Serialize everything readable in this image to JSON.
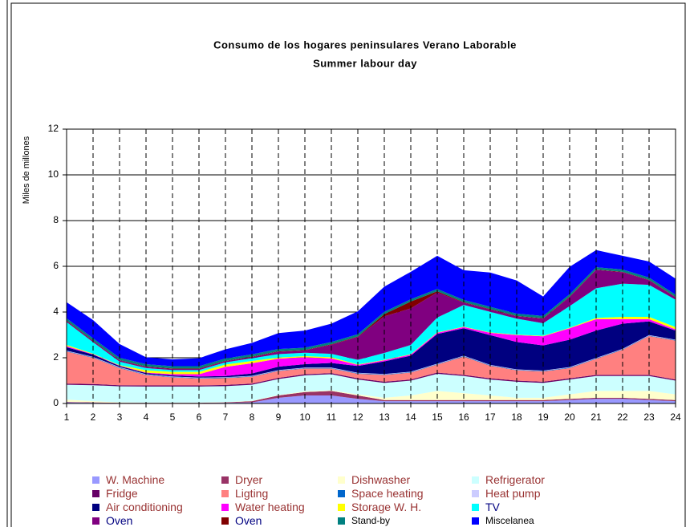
{
  "chart_data": {
    "type": "stacked_area",
    "title": "Consumo de los hogares peninsulares Verano Laborable",
    "subtitle": "Summer labour day",
    "y_label": "Miles de millones",
    "categories": [
      "1",
      "2",
      "3",
      "4",
      "5",
      "6",
      "7",
      "8",
      "9",
      "10",
      "11",
      "12",
      "13",
      "14",
      "15",
      "16",
      "17",
      "18",
      "19",
      "20",
      "21",
      "22",
      "23",
      "24"
    ],
    "ylim": [
      0,
      12
    ],
    "yticks": [
      0,
      2,
      4,
      6,
      8,
      10,
      12
    ],
    "grid": true,
    "series": [
      {
        "name": "W. Machine",
        "color": "#9999ff",
        "values": [
          0.05,
          0.03,
          0.02,
          0.02,
          0.02,
          0.02,
          0.03,
          0.05,
          0.25,
          0.35,
          0.35,
          0.2,
          0.1,
          0.1,
          0.1,
          0.1,
          0.1,
          0.1,
          0.1,
          0.15,
          0.2,
          0.2,
          0.15,
          0.1
        ]
      },
      {
        "name": "Dryer",
        "color": "#993366",
        "values": [
          0.02,
          0.02,
          0.01,
          0.01,
          0.01,
          0.01,
          0.02,
          0.05,
          0.1,
          0.15,
          0.2,
          0.15,
          0.05,
          0.05,
          0.05,
          0.05,
          0.05,
          0.05,
          0.05,
          0.05,
          0.05,
          0.05,
          0.05,
          0.05
        ]
      },
      {
        "name": "Dishwasher",
        "color": "#ffffcc",
        "values": [
          0.1,
          0.05,
          0.02,
          0.01,
          0.01,
          0.01,
          0.01,
          0.02,
          0.02,
          0.03,
          0.03,
          0.05,
          0.1,
          0.2,
          0.4,
          0.3,
          0.2,
          0.1,
          0.1,
          0.2,
          0.3,
          0.3,
          0.35,
          0.25
        ]
      },
      {
        "name": "Refrigerator",
        "color": "#ccffff",
        "values": [
          0.65,
          0.7,
          0.7,
          0.7,
          0.7,
          0.7,
          0.7,
          0.7,
          0.7,
          0.7,
          0.7,
          0.65,
          0.65,
          0.65,
          0.75,
          0.75,
          0.7,
          0.7,
          0.65,
          0.65,
          0.65,
          0.65,
          0.65,
          0.6
        ]
      },
      {
        "name": "Fridge",
        "color": "#660066",
        "values": [
          0.05,
          0.05,
          0.05,
          0.05,
          0.05,
          0.05,
          0.05,
          0.05,
          0.05,
          0.05,
          0.05,
          0.05,
          0.05,
          0.05,
          0.05,
          0.05,
          0.05,
          0.05,
          0.05,
          0.05,
          0.05,
          0.05,
          0.05,
          0.05
        ]
      },
      {
        "name": "Ligting",
        "color": "#ff8080",
        "values": [
          1.4,
          1.15,
          0.75,
          0.45,
          0.35,
          0.3,
          0.3,
          0.3,
          0.3,
          0.25,
          0.2,
          0.2,
          0.3,
          0.3,
          0.35,
          0.8,
          0.55,
          0.45,
          0.45,
          0.45,
          0.7,
          1.1,
          1.7,
          1.7
        ]
      },
      {
        "name": "Space heating",
        "color": "#0066cc",
        "values": [
          0.02,
          0.02,
          0.02,
          0.02,
          0.02,
          0.02,
          0.02,
          0.02,
          0.02,
          0.02,
          0.02,
          0.02,
          0.02,
          0.02,
          0.02,
          0.02,
          0.02,
          0.02,
          0.02,
          0.02,
          0.02,
          0.02,
          0.02,
          0.02
        ]
      },
      {
        "name": "Heat pump",
        "color": "#ccccff",
        "values": [
          0.02,
          0.02,
          0.02,
          0.02,
          0.02,
          0.02,
          0.02,
          0.02,
          0.02,
          0.02,
          0.02,
          0.02,
          0.02,
          0.02,
          0.02,
          0.02,
          0.02,
          0.02,
          0.02,
          0.02,
          0.02,
          0.02,
          0.02,
          0.02
        ]
      },
      {
        "name": "Air conditioning",
        "color": "#000080",
        "values": [
          0.15,
          0.1,
          0.05,
          0.05,
          0.05,
          0.05,
          0.05,
          0.1,
          0.15,
          0.15,
          0.2,
          0.3,
          0.55,
          0.7,
          1.3,
          1.2,
          1.3,
          1.2,
          1.1,
          1.2,
          1.2,
          1.1,
          0.6,
          0.4
        ]
      },
      {
        "name": "Water heating",
        "color": "#ff00ff",
        "values": [
          0.05,
          0.02,
          0.02,
          0.02,
          0.05,
          0.1,
          0.4,
          0.45,
          0.35,
          0.3,
          0.2,
          0.05,
          0.05,
          0.05,
          0.05,
          0.05,
          0.1,
          0.3,
          0.4,
          0.5,
          0.5,
          0.2,
          0.1,
          0.05
        ]
      },
      {
        "name": "Storage W. H.",
        "color": "#ffff00",
        "values": [
          0.05,
          0.02,
          0.02,
          0.1,
          0.1,
          0.1,
          0.1,
          0.1,
          0.05,
          0.05,
          0.05,
          0.02,
          0.02,
          0.02,
          0.02,
          0.02,
          0.02,
          0.02,
          0.02,
          0.02,
          0.05,
          0.1,
          0.1,
          0.1
        ]
      },
      {
        "name": "TV",
        "color": "#00ffff",
        "values": [
          1.0,
          0.5,
          0.15,
          0.1,
          0.08,
          0.08,
          0.1,
          0.12,
          0.15,
          0.15,
          0.15,
          0.2,
          0.3,
          0.4,
          0.65,
          0.95,
          0.9,
          0.7,
          0.55,
          0.95,
          1.3,
          1.45,
          1.4,
          1.2
        ]
      },
      {
        "name": "Oven",
        "color": "#800080",
        "values": [
          0.05,
          0.05,
          0.05,
          0.05,
          0.05,
          0.05,
          0.05,
          0.05,
          0.1,
          0.1,
          0.4,
          1.0,
          1.6,
          1.6,
          1.1,
          0.1,
          0.1,
          0.1,
          0.2,
          0.4,
          0.8,
          0.5,
          0.2,
          0.1
        ]
      },
      {
        "name": "Oven",
        "color": "#800000",
        "values": [
          0.02,
          0.02,
          0.02,
          0.02,
          0.02,
          0.02,
          0.02,
          0.02,
          0.02,
          0.02,
          0.02,
          0.02,
          0.1,
          0.3,
          0.05,
          0.02,
          0.02,
          0.02,
          0.02,
          0.02,
          0.02,
          0.02,
          0.02,
          0.02
        ]
      },
      {
        "name": "Stand-by",
        "color": "#008080",
        "values": [
          0.1,
          0.1,
          0.1,
          0.1,
          0.1,
          0.1,
          0.1,
          0.1,
          0.1,
          0.1,
          0.1,
          0.1,
          0.1,
          0.1,
          0.1,
          0.1,
          0.1,
          0.1,
          0.1,
          0.1,
          0.1,
          0.1,
          0.1,
          0.1
        ]
      },
      {
        "name": "Miscelanea",
        "color": "#0000ff",
        "values": [
          0.7,
          0.8,
          0.6,
          0.3,
          0.3,
          0.35,
          0.4,
          0.5,
          0.7,
          0.75,
          0.8,
          1.0,
          1.1,
          1.2,
          1.45,
          1.3,
          1.5,
          1.45,
          0.85,
          1.2,
          0.75,
          0.6,
          0.7,
          0.7
        ]
      }
    ]
  }
}
